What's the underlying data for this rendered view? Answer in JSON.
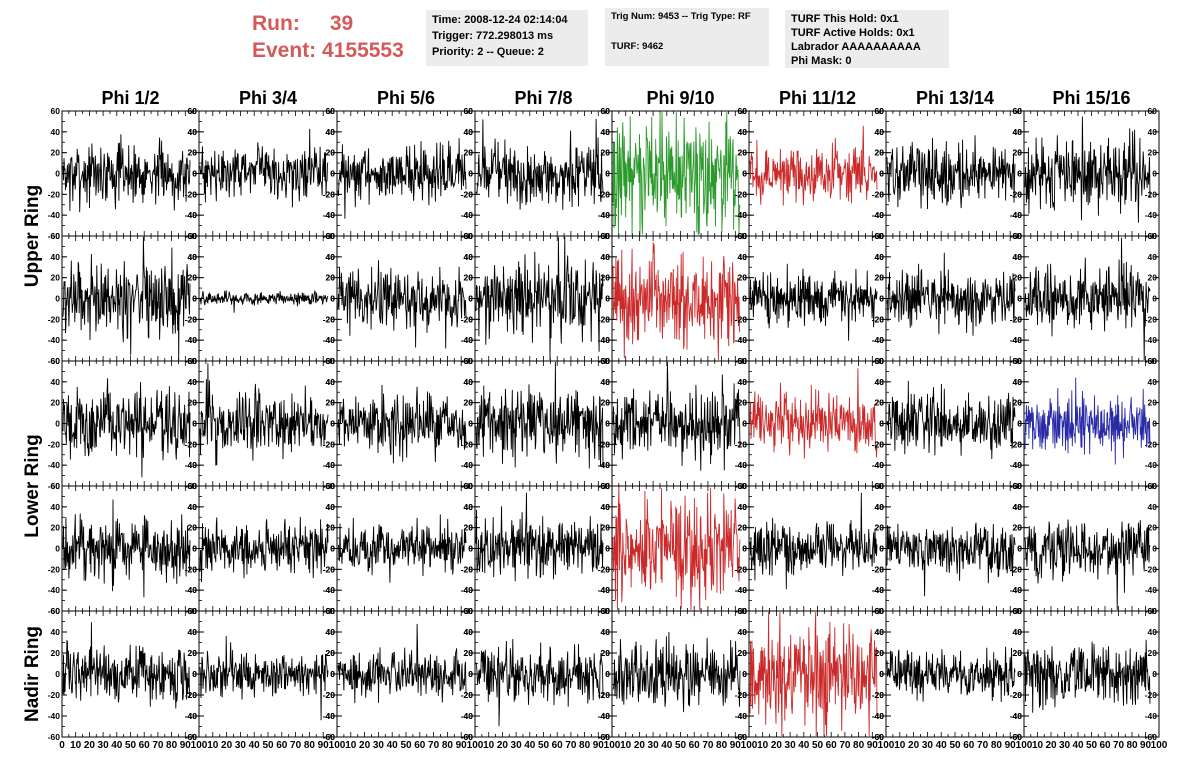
{
  "header": {
    "run_label": "Run:",
    "run_value": "39",
    "event_label": "Event:",
    "event_value": "4155553",
    "time_line": "Time: 2008-12-24 02:14:04",
    "trigger_line": "Trigger: 772.298013 ms",
    "priority_line": "Priority: 2 -- Queue: 2",
    "trig_line": "Trig Num: 9453 -- Trig Type: RF",
    "turf_line": "TURF: 9462",
    "hold_line": "TURF This Hold: 0x1",
    "active_holds_line": "TURF Active Holds: 0x1",
    "labrador_line": "Labrador AAAAAAAAAA",
    "phi_mask_line": "Phi Mask: 0"
  },
  "colors": {
    "header_red": "#d45a5a",
    "info_bg": "#ececec",
    "trace_default": "#000000",
    "trace_green": "#2a9a2a",
    "trace_red": "#cc2a2a",
    "trace_blue": "#2a2aa8"
  },
  "chart_data": {
    "type": "line",
    "layout": "grid-5x8",
    "columns": [
      "Phi 1/2",
      "Phi 3/4",
      "Phi 5/6",
      "Phi 7/8",
      "Phi 9/10",
      "Phi 11/12",
      "Phi 13/14",
      "Phi 15/16"
    ],
    "row_labels": [
      {
        "text": "Upper Ring",
        "rows": [
          0,
          1
        ]
      },
      {
        "text": "Lower Ring",
        "rows": [
          2,
          3
        ]
      },
      {
        "text": "Nadir Ring",
        "rows": [
          4
        ]
      }
    ],
    "ylim": [
      -60,
      60
    ],
    "yticks": [
      -60,
      -40,
      -20,
      0,
      20,
      40,
      60
    ],
    "xlim": [
      0,
      100
    ],
    "xtick_labels": [
      "0",
      "10",
      "20",
      "30",
      "40",
      "50",
      "60",
      "70",
      "80",
      "90",
      "100"
    ],
    "samples_per_trace": 260,
    "waveform_note": "Noise-like oscillating traces centred on 0; amplitude = approximate typical peak value in mV",
    "amplitude": [
      [
        14,
        12,
        13,
        15,
        26,
        12,
        14,
        17
      ],
      [
        18,
        3,
        14,
        18,
        22,
        12,
        13,
        15
      ],
      [
        16,
        14,
        14,
        16,
        15,
        14,
        15,
        14
      ],
      [
        15,
        12,
        12,
        14,
        24,
        12,
        12,
        14
      ],
      [
        13,
        10,
        11,
        13,
        14,
        22,
        11,
        15
      ]
    ],
    "trace_color": [
      [
        "default",
        "default",
        "default",
        "default",
        "green",
        "red",
        "default",
        "default"
      ],
      [
        "default",
        "default",
        "default",
        "default",
        "red",
        "default",
        "default",
        "default"
      ],
      [
        "default",
        "default",
        "default",
        "default",
        "default",
        "red",
        "default",
        "blue"
      ],
      [
        "default",
        "default",
        "default",
        "default",
        "red",
        "default",
        "default",
        "default"
      ],
      [
        "default",
        "default",
        "default",
        "default",
        "default",
        "red",
        "default",
        "default"
      ]
    ]
  }
}
